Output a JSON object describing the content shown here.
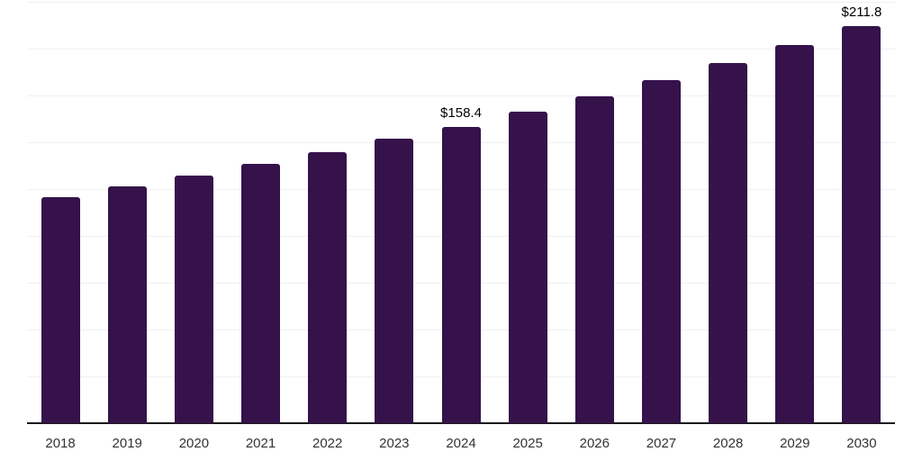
{
  "chart_data": {
    "type": "bar",
    "title": "",
    "xlabel": "",
    "ylabel": "",
    "categories": [
      "2018",
      "2019",
      "2020",
      "2021",
      "2022",
      "2023",
      "2024",
      "2025",
      "2026",
      "2027",
      "2028",
      "2029",
      "2030"
    ],
    "values": [
      120.7,
      126.4,
      132.2,
      138.5,
      144.7,
      151.9,
      158.4,
      166.3,
      174.5,
      183.2,
      192.3,
      201.8,
      211.8
    ],
    "data_labels": {
      "2024": "$158.4",
      "2030": "$211.8"
    },
    "ylim": [
      0,
      225
    ],
    "grid_step": 25,
    "grid": true,
    "legend": "none",
    "colors": {
      "bar": "#35124A",
      "gridline": "#f1eff2",
      "axis": "#1a1a1a",
      "tick_label": "#333333",
      "data_label": "#000000",
      "background": "#ffffff"
    }
  }
}
